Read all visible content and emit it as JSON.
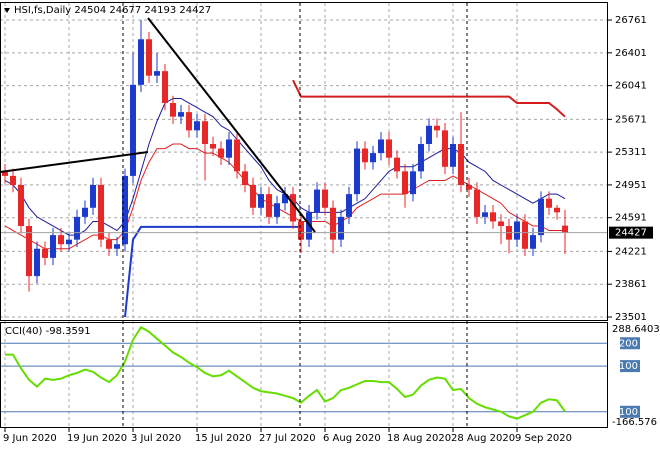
{
  "chart_data": [
    {
      "type": "candlestick",
      "title": "HSI,fs,Daily",
      "categories": [
        "9 Jun 2020",
        null,
        null,
        null,
        null,
        null,
        null,
        null,
        "19 Jun 2020",
        null,
        null,
        null,
        null,
        null,
        null,
        null,
        "3 Jul 2020",
        null,
        null,
        null,
        null,
        null,
        null,
        null,
        "15 Jul 2020",
        null,
        null,
        null,
        null,
        null,
        null,
        null,
        "27 Jul 2020",
        null,
        null,
        null,
        null,
        null,
        null,
        null,
        "6 Aug 2020",
        null,
        null,
        null,
        null,
        null,
        null,
        null,
        "18 Aug 2020",
        null,
        null,
        null,
        null,
        null,
        null,
        null,
        "28 Aug 2020",
        null,
        null,
        null,
        null,
        null,
        null,
        null,
        "9 Sep 2020",
        null,
        null,
        null,
        null,
        null,
        null
      ],
      "open": [
        25100,
        25050,
        24950,
        24500,
        23950,
        24250,
        24150,
        24400,
        24300,
        24350,
        24600,
        24700,
        24950,
        24350,
        24250,
        24300,
        25050,
        26050,
        26550,
        26150,
        26200,
        25850,
        25700,
        25750,
        25550,
        25650,
        25400,
        25350,
        25250,
        25450,
        25100,
        24950,
        24700,
        24850,
        24600,
        24750,
        24850,
        24550,
        24350,
        24650,
        24900,
        24700,
        24350,
        24600,
        24850,
        25350,
        25200,
        25300,
        25450,
        25250,
        25100,
        24850,
        25100,
        25400,
        25600,
        25550,
        25150,
        25400,
        24950,
        24900,
        24600,
        24650,
        24550,
        24500,
        24350,
        24550,
        24250,
        24400,
        24800,
        24700,
        24504
      ],
      "high": [
        25180,
        25130,
        25030,
        24580,
        24330,
        24330,
        24480,
        24480,
        24430,
        24680,
        24780,
        25030,
        25030,
        24430,
        24380,
        25130,
        26400,
        26761,
        26630,
        26400,
        26280,
        25930,
        25830,
        25830,
        25730,
        25730,
        25480,
        25430,
        25530,
        25530,
        25180,
        25030,
        24930,
        24930,
        24830,
        24930,
        24930,
        24630,
        24730,
        24980,
        24980,
        24780,
        24680,
        24930,
        25430,
        25430,
        25380,
        25530,
        25530,
        25330,
        25180,
        25180,
        25480,
        25680,
        25680,
        25630,
        25480,
        25750,
        25030,
        24980,
        24730,
        24730,
        24630,
        24580,
        24630,
        24630,
        24480,
        24880,
        24880,
        24730,
        24677
      ],
      "low": [
        24970,
        24870,
        24420,
        23780,
        23870,
        24070,
        24070,
        24220,
        24220,
        24270,
        24520,
        24620,
        24270,
        24170,
        24170,
        24220,
        24970,
        25970,
        26070,
        26070,
        25770,
        25620,
        25620,
        25470,
        25470,
        25000,
        25270,
        25170,
        25170,
        25020,
        24870,
        24620,
        24620,
        24520,
        24520,
        24670,
        24470,
        24200,
        24270,
        24570,
        24620,
        24200,
        24270,
        24520,
        24770,
        25120,
        25120,
        25220,
        25170,
        25020,
        24700,
        24770,
        25020,
        25320,
        25470,
        25070,
        25070,
        24870,
        24820,
        24520,
        24520,
        24470,
        24300,
        24200,
        24270,
        24170,
        24170,
        24320,
        24620,
        24570,
        24193
      ],
      "close": [
        25050,
        24950,
        24500,
        23950,
        24250,
        24150,
        24400,
        24300,
        24350,
        24600,
        24700,
        24950,
        24350,
        24250,
        24300,
        25050,
        26050,
        26550,
        26150,
        26200,
        25850,
        25700,
        25750,
        25550,
        25650,
        25400,
        25350,
        25250,
        25450,
        25100,
        24950,
        24700,
        24850,
        24600,
        24750,
        24850,
        24550,
        24350,
        24650,
        24900,
        24700,
        24350,
        24600,
        24850,
        25350,
        25200,
        25300,
        25450,
        25250,
        25100,
        24850,
        25100,
        25400,
        25600,
        25550,
        25150,
        25400,
        24950,
        24900,
        24600,
        24650,
        24550,
        24500,
        24350,
        24550,
        24250,
        24400,
        24800,
        24700,
        24650,
        24427
      ],
      "up_color": "#1c3acc",
      "down_color": "#e82828",
      "series": [
        {
          "color": "#1a1a9c",
          "values": [
            25000,
            24950,
            24850,
            24700,
            24600,
            24550,
            24500,
            24450,
            24400,
            24400,
            24450,
            24550,
            24550,
            24500,
            24450,
            24550,
            24800,
            25100,
            25400,
            25650,
            25850,
            25900,
            25900,
            25850,
            25800,
            25750,
            25700,
            25600,
            25550,
            25450,
            25350,
            25250,
            25150,
            25000,
            24900,
            24850,
            24800,
            24700,
            24650,
            24650,
            24650,
            24650,
            24650,
            24700,
            24750,
            24800,
            24900,
            25000,
            25100,
            25150,
            25150,
            25150,
            25200,
            25250,
            25300,
            25350,
            25350,
            25300,
            25200,
            25150,
            25100,
            25000,
            24950,
            24900,
            24850,
            24800,
            24750,
            24800,
            24850,
            24850,
            24800
          ]
        },
        {
          "color": "#e02020",
          "values": [
            24500,
            24450,
            24400,
            24350,
            24300,
            24250,
            24250,
            24250,
            24250,
            24300,
            24350,
            24400,
            24400,
            24350,
            24350,
            24450,
            24700,
            25000,
            25200,
            25350,
            25350,
            25400,
            25400,
            25350,
            25350,
            25300,
            25300,
            25250,
            25200,
            25100,
            25000,
            24900,
            24800,
            24750,
            24700,
            24650,
            24600,
            24550,
            24550,
            24550,
            24550,
            24500,
            24550,
            24600,
            24700,
            24750,
            24800,
            24850,
            24850,
            24850,
            24850,
            24900,
            24950,
            25000,
            25000,
            25000,
            25050,
            25000,
            24950,
            24900,
            24850,
            24800,
            24750,
            24650,
            24600,
            24550,
            24500,
            24500,
            24450,
            24450,
            24450
          ]
        },
        {
          "color": "#1c3acc",
          "values": [
            null,
            null,
            null,
            null,
            null,
            null,
            null,
            null,
            null,
            null,
            null,
            null,
            null,
            null,
            null,
            23501,
            24350,
            24490,
            24490,
            24490,
            24490,
            24490,
            24490,
            24490,
            24490,
            24490,
            24490,
            24490,
            24490,
            24490,
            24490,
            24490,
            24490,
            24490,
            24490,
            24490,
            24490,
            24490,
            null,
            null,
            null,
            null,
            null,
            null,
            null,
            null,
            null,
            null,
            null,
            null,
            null,
            null,
            null,
            null,
            null,
            null,
            null,
            null,
            null,
            null,
            null,
            null,
            null,
            null,
            null,
            null,
            null,
            null,
            null,
            null,
            null
          ]
        },
        {
          "color": "#d41c1c",
          "values": [
            null,
            null,
            null,
            null,
            null,
            null,
            null,
            null,
            null,
            null,
            null,
            null,
            null,
            null,
            null,
            null,
            null,
            null,
            null,
            null,
            null,
            null,
            null,
            null,
            null,
            null,
            null,
            null,
            null,
            null,
            null,
            null,
            null,
            null,
            null,
            null,
            26100,
            25920,
            25920,
            25920,
            25920,
            25920,
            25920,
            25920,
            25920,
            25920,
            25920,
            25920,
            25920,
            25920,
            25920,
            25920,
            25920,
            25920,
            25920,
            25920,
            25920,
            25920,
            25920,
            25920,
            25920,
            25920,
            25920,
            25920,
            25850,
            25850,
            25850,
            25850,
            25850,
            25780,
            25700
          ]
        }
      ],
      "ylim": [
        23468,
        26948
      ],
      "yticks": [
        26761,
        26401,
        26041,
        25671,
        25311,
        24951,
        24591,
        24221,
        23861,
        23501
      ],
      "grid": true
    },
    {
      "type": "line",
      "title": "CCI(40)",
      "series": [
        {
          "color": "#66dd00",
          "values": [
            150,
            150,
            90,
            40,
            10,
            45,
            40,
            45,
            60,
            70,
            85,
            75,
            50,
            30,
            60,
            120,
            215,
            270,
            250,
            220,
            190,
            160,
            140,
            115,
            95,
            70,
            55,
            60,
            80,
            55,
            30,
            5,
            -10,
            -15,
            -20,
            -30,
            -40,
            -60,
            -30,
            -5,
            -55,
            -40,
            -5,
            5,
            20,
            35,
            35,
            30,
            30,
            0,
            -35,
            -25,
            15,
            40,
            50,
            45,
            -5,
            0,
            -40,
            -65,
            -80,
            -90,
            -100,
            -120,
            -130,
            -115,
            -100,
            -60,
            -45,
            -50,
            -98.3591
          ]
        }
      ],
      "ylim": [
        -166.576,
        288.6403
      ],
      "yticks": [
        200,
        100,
        -100
      ]
    }
  ]
}
